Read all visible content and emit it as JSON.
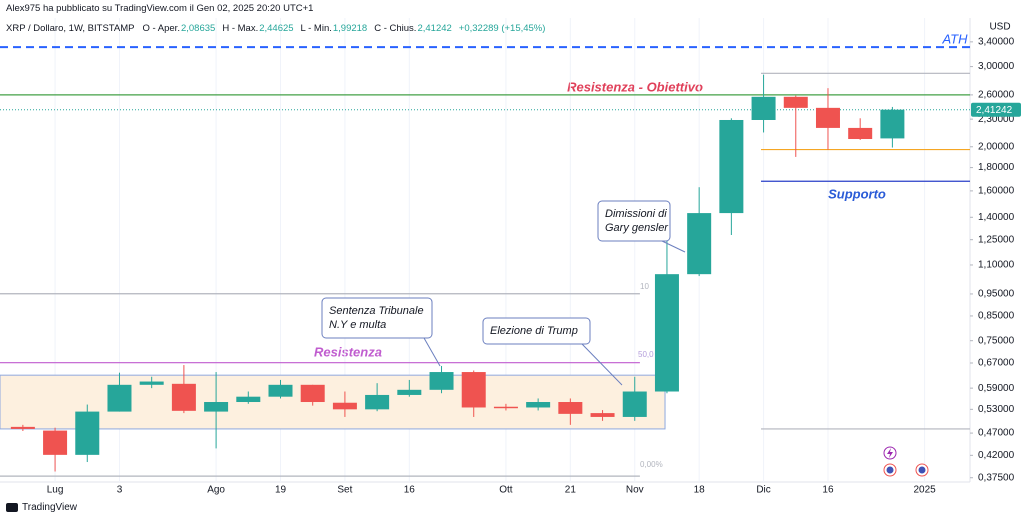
{
  "header": "Alex975 ha pubblicato su TradingView.com il Gen 02, 2025 20:20 UTC+1",
  "footer": "TradingView",
  "chart_data": {
    "type": "candlestick",
    "title": "XRP / Dollaro, 1W, BITSTAMP",
    "legend_items": [
      {
        "key": "O - Aper.",
        "value": "2,08635"
      },
      {
        "key": "H - Max.",
        "value": "2,44625"
      },
      {
        "key": "L - Min.",
        "value": "1,99218"
      },
      {
        "key": "C - Chius.",
        "value": "2,41242"
      }
    ],
    "change": "+0,32289 (+15,45%)",
    "x": [
      0,
      1,
      2,
      3,
      4,
      5,
      6,
      7,
      8,
      9,
      10,
      11,
      12,
      13,
      14,
      15,
      16,
      17,
      18,
      19,
      20,
      21,
      22,
      23,
      24,
      25,
      26,
      27
    ],
    "open": [
      0.485,
      0.476,
      0.421,
      0.524,
      0.6,
      0.603,
      0.524,
      0.55,
      0.565,
      0.6,
      0.548,
      0.53,
      0.57,
      0.585,
      0.64,
      0.537,
      0.535,
      0.55,
      0.52,
      0.51,
      0.58,
      1.05,
      1.43,
      2.29,
      2.575,
      2.435,
      2.2,
      2.08635
    ],
    "high": [
      0.49,
      0.483,
      0.543,
      0.638,
      0.625,
      0.663,
      0.64,
      0.58,
      0.615,
      0.6,
      0.58,
      0.605,
      0.615,
      0.66,
      0.645,
      0.545,
      0.56,
      0.56,
      0.528,
      0.625,
      1.25,
      1.63,
      2.31,
      2.88,
      2.59,
      2.69,
      2.31,
      2.44625
    ],
    "low": [
      0.475,
      0.387,
      0.406,
      0.524,
      0.59,
      0.52,
      0.435,
      0.545,
      0.56,
      0.54,
      0.51,
      0.525,
      0.565,
      0.575,
      0.51,
      0.527,
      0.527,
      0.49,
      0.5,
      0.5,
      0.575,
      1.04,
      1.28,
      2.15,
      1.9,
      1.97,
      2.07,
      1.99218
    ],
    "close": [
      0.48,
      0.421,
      0.524,
      0.6,
      0.61,
      0.526,
      0.55,
      0.565,
      0.6,
      0.55,
      0.53,
      0.57,
      0.585,
      0.64,
      0.535,
      0.533,
      0.55,
      0.518,
      0.51,
      0.58,
      1.05,
      1.43,
      2.29,
      2.575,
      2.435,
      2.2,
      2.08,
      2.41242
    ],
    "up_color": "#26a69a",
    "down_color": "#ef5350",
    "xlim": [
      -0.71,
      29.41
    ],
    "xticks": [
      {
        "value": 1,
        "label": "Lug"
      },
      3,
      {
        "value": 6,
        "label": "Ago"
      },
      {
        "value": 8,
        "label": "19"
      },
      {
        "value": 10,
        "label": "Set"
      },
      {
        "value": 12,
        "label": "16"
      },
      {
        "value": 15,
        "label": "Ott"
      },
      {
        "value": 17,
        "label": "21"
      },
      {
        "value": 19,
        "label": "Nov"
      },
      {
        "value": 21,
        "label": "18"
      },
      {
        "value": 23,
        "label": "Dic"
      },
      {
        "value": 25,
        "label": "16"
      },
      {
        "value": 28,
        "label": "2025"
      }
    ],
    "ylim": [
      0.367,
      3.61
    ],
    "yscale": "log",
    "y_axis_label": "USD",
    "yticks": [
      {
        "value": 3.4,
        "label": "3,40000"
      },
      {
        "value": 3,
        "label": "3,00000"
      },
      {
        "value": 2.6,
        "label": "2,60000"
      },
      {
        "value": 2.3,
        "label": "2,30000"
      },
      {
        "value": 2,
        "label": "2,00000"
      },
      {
        "value": 1.8,
        "label": "1,80000"
      },
      {
        "value": 1.6,
        "label": "1,60000"
      },
      {
        "value": 1.4,
        "label": "1,40000"
      },
      {
        "value": 1.25,
        "label": "1,25000"
      },
      {
        "value": 1.1,
        "label": "1,10000"
      },
      {
        "value": 0.95,
        "label": "0,95000"
      },
      {
        "value": 0.85,
        "label": "0,85000"
      },
      {
        "value": 0.75,
        "label": "0,75000"
      },
      {
        "value": 0.67,
        "label": "0,67000"
      },
      {
        "value": 0.59,
        "label": "0,59000"
      },
      {
        "value": 0.53,
        "label": "0,53000"
      },
      {
        "value": 0.47,
        "label": "0,47000"
      },
      {
        "value": 0.42,
        "label": "0,42000"
      },
      {
        "value": 0.375,
        "label": "0,37500"
      }
    ],
    "last_price": {
      "value": 2.41242,
      "label": "2,41242"
    },
    "levels": [
      {
        "name": "ATH",
        "value": 3.31,
        "color": "#2962ff",
        "style": "dashed"
      },
      {
        "name": "Resistenza - Obiettivo",
        "value": 2.6,
        "color": "#43a047",
        "style": "solid"
      },
      {
        "value": 2.9,
        "color": "#b2b5be",
        "style": "solid",
        "xrange": [
          22.92,
          29.41
        ]
      },
      {
        "value": 1.972,
        "color": "#f5a623",
        "style": "solid",
        "xrange": [
          22.92,
          29.41
        ]
      },
      {
        "name": "Supporto",
        "value": 1.68,
        "color": "#2a3fc8",
        "style": "solid",
        "xrange": [
          22.92,
          29.41
        ]
      },
      {
        "value": 0.48,
        "color": "#b2b5be",
        "style": "solid",
        "xrange": [
          22.92,
          29.41
        ]
      },
      {
        "value": 0.951,
        "color": "#b2b5be",
        "style": "solid",
        "xrange": [
          -0.71,
          19.16
        ]
      },
      {
        "name": "Resistenza",
        "value": 0.671,
        "color": "#c05ccf",
        "style": "solid",
        "xrange": [
          -0.71,
          19.16
        ]
      },
      {
        "value": 0.378,
        "color": "#b2b5be",
        "style": "solid",
        "xrange": [
          -0.71,
          19.16
        ]
      }
    ],
    "zone": {
      "low": 0.48,
      "high": 0.63,
      "xrange": [
        -0.71,
        19.94
      ],
      "color": "#fdf0df",
      "border": "#8fa8df"
    },
    "fib_labels": [
      "10",
      "50,0",
      "0,00%"
    ],
    "annotations": [
      {
        "lines": [
          "Sentenza Tribunale",
          "N.Y e multa"
        ]
      },
      {
        "lines": [
          "Elezione di Trump"
        ]
      },
      {
        "lines": [
          "Dimissioni di",
          "Gary gensler"
        ]
      }
    ]
  }
}
